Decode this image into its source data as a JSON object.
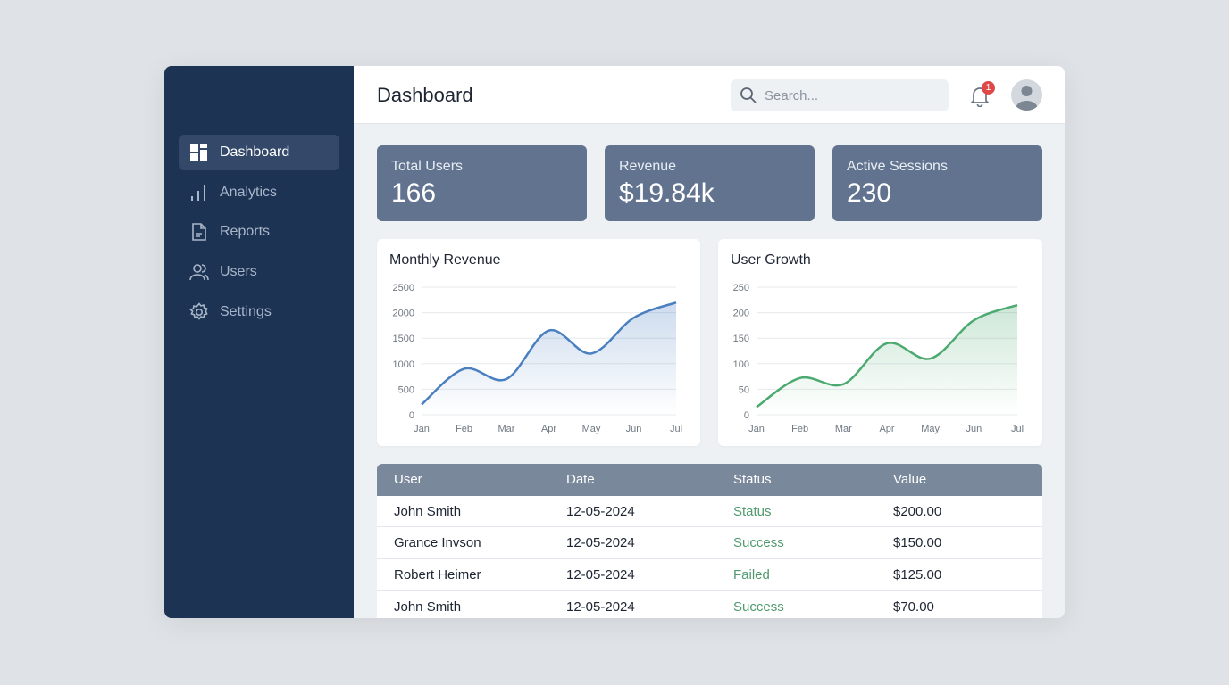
{
  "sidebar": {
    "items": [
      {
        "label": "Dashboard",
        "icon": "dashboard-icon",
        "active": true
      },
      {
        "label": "Analytics",
        "icon": "bar-chart-icon"
      },
      {
        "label": "Reports",
        "icon": "document-icon"
      },
      {
        "label": "Users",
        "icon": "users-icon"
      },
      {
        "label": "Settings",
        "icon": "gear-icon"
      }
    ]
  },
  "header": {
    "title": "Dashboard",
    "search_placeholder": "Search...",
    "notification_count": "1"
  },
  "stats": [
    {
      "label": "Total Users",
      "value": "166"
    },
    {
      "label": "Revenue",
      "value": "$19.84k"
    },
    {
      "label": "Active Sessions",
      "value": "230"
    }
  ],
  "chart_data": [
    {
      "type": "area",
      "title": "Monthly Revenue",
      "categories": [
        "Jan",
        "Feb",
        "Mar",
        "Apr",
        "May",
        "Jun",
        "Jul"
      ],
      "values": [
        200,
        900,
        700,
        1650,
        1200,
        1900,
        2200
      ],
      "ylim": [
        0,
        2500
      ],
      "yticks": [
        0,
        500,
        1000,
        1500,
        2000,
        2500
      ],
      "grid": true,
      "color": "#4a7fc0"
    },
    {
      "type": "area",
      "title": "User Growth",
      "categories": [
        "Jan",
        "Feb",
        "Mar",
        "Apr",
        "May",
        "Jun",
        "Jul"
      ],
      "values": [
        15,
        72,
        60,
        140,
        110,
        185,
        215
      ],
      "ylim": [
        0,
        250
      ],
      "yticks": [
        0,
        50,
        100,
        150,
        200,
        250
      ],
      "grid": true,
      "color": "#4caa70"
    }
  ],
  "table": {
    "headers": [
      "User",
      "Date",
      "Status",
      "Value"
    ],
    "rows": [
      [
        "John Smith",
        "12-05-2024",
        "Status",
        "$200.00"
      ],
      [
        "Grance Invson",
        "12-05-2024",
        "Success",
        "$150.00"
      ],
      [
        "Robert Heimer",
        "12-05-2024",
        "Failed",
        "$125.00"
      ],
      [
        "John Smith",
        "12-05-2024",
        "Success",
        "$70.00"
      ]
    ]
  }
}
